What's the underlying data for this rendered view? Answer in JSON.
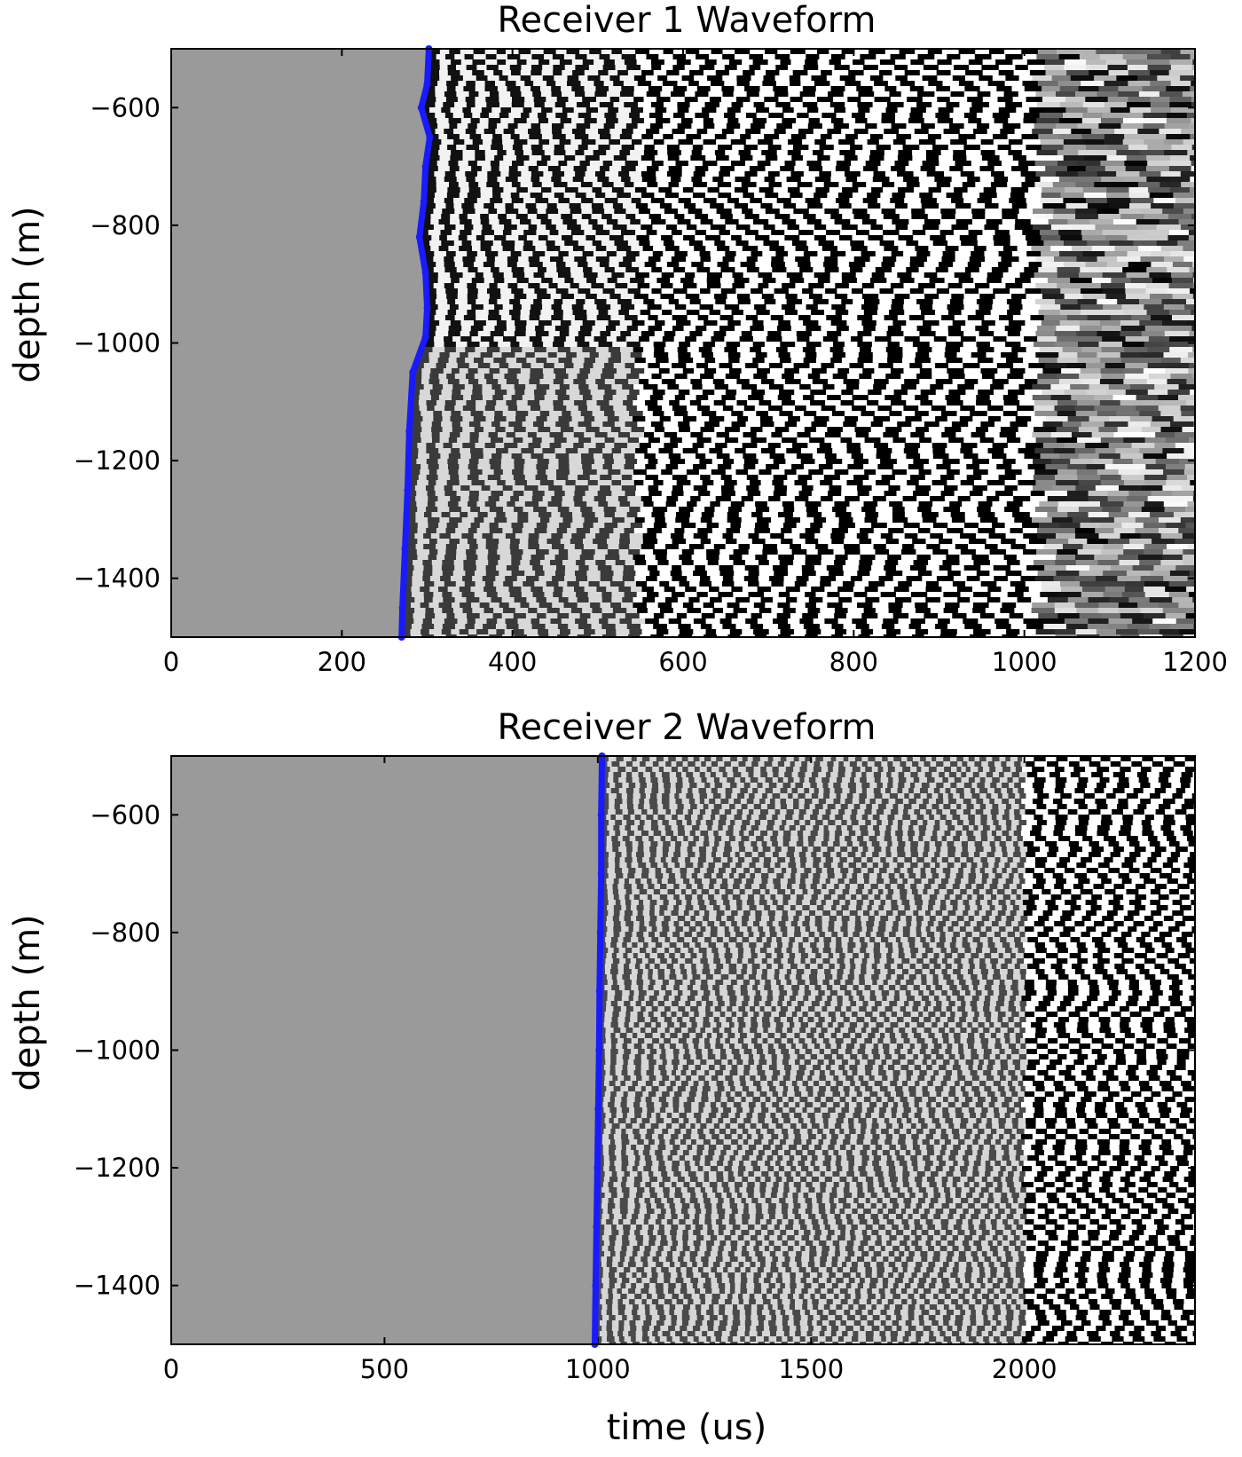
{
  "chart_data": [
    {
      "type": "heatmap",
      "title": "Receiver 1 Waveform",
      "xlabel": "",
      "ylabel": "depth (m)",
      "xlim": [
        0,
        1200
      ],
      "ylim": [
        -1500,
        -500
      ],
      "xticks": [
        0,
        200,
        400,
        600,
        800,
        1000,
        1200
      ],
      "xticklabels": [
        "0",
        "200",
        "400",
        "600",
        "800",
        "1000",
        "1200"
      ],
      "yticks": [
        -600,
        -800,
        -1000,
        -1200,
        -1400
      ],
      "yticklabels": [
        "−600",
        "−800",
        "−1000",
        "−1200",
        "−1400"
      ],
      "colormap": "gray",
      "grid": false,
      "pick_series": {
        "color": "#1a1aff",
        "points": [
          {
            "depth": -500,
            "time": 302
          },
          {
            "depth": -560,
            "time": 300
          },
          {
            "depth": -600,
            "time": 293
          },
          {
            "depth": -650,
            "time": 303
          },
          {
            "depth": -700,
            "time": 298
          },
          {
            "depth": -760,
            "time": 296
          },
          {
            "depth": -820,
            "time": 291
          },
          {
            "depth": -880,
            "time": 298
          },
          {
            "depth": -940,
            "time": 300
          },
          {
            "depth": -990,
            "time": 298
          },
          {
            "depth": -1050,
            "time": 283
          },
          {
            "depth": -1150,
            "time": 279
          },
          {
            "depth": -1250,
            "time": 277
          },
          {
            "depth": -1350,
            "time": 274
          },
          {
            "depth": -1450,
            "time": 271
          },
          {
            "depth": -1500,
            "time": 270
          }
        ]
      }
    },
    {
      "type": "heatmap",
      "title": "Receiver 2 Waveform",
      "xlabel": "time (us)",
      "ylabel": "depth (m)",
      "xlim": [
        0,
        2400
      ],
      "ylim": [
        -1500,
        -500
      ],
      "xticks": [
        0,
        500,
        1000,
        1500,
        2000
      ],
      "xticklabels": [
        "0",
        "500",
        "1000",
        "1500",
        "2000"
      ],
      "yticks": [
        -600,
        -800,
        -1000,
        -1200,
        -1400
      ],
      "yticklabels": [
        "−600",
        "−800",
        "−1000",
        "−1200",
        "−1400"
      ],
      "colormap": "gray",
      "grid": false,
      "pick_series": {
        "color": "#1a1aff",
        "points": [
          {
            "depth": -500,
            "time": 1010
          },
          {
            "depth": -600,
            "time": 1008
          },
          {
            "depth": -700,
            "time": 1008
          },
          {
            "depth": -800,
            "time": 1006
          },
          {
            "depth": -900,
            "time": 1004
          },
          {
            "depth": -1000,
            "time": 1003
          },
          {
            "depth": -1100,
            "time": 1001
          },
          {
            "depth": -1200,
            "time": 999
          },
          {
            "depth": -1300,
            "time": 997
          },
          {
            "depth": -1400,
            "time": 995
          },
          {
            "depth": -1500,
            "time": 993
          }
        ]
      }
    }
  ]
}
